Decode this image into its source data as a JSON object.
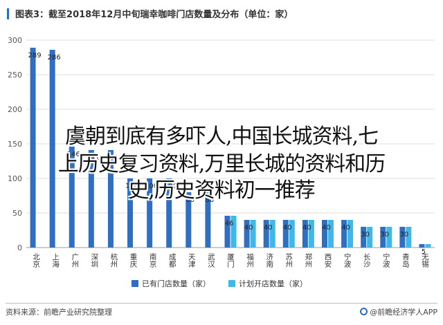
{
  "chart_data": {
    "type": "bar",
    "title": "图表3：截至2018年12月中旬瑞幸咖啡门店数量及分布（单位：家）",
    "categories": [
      "北京",
      "上海",
      "广州",
      "深圳",
      "杭州",
      "重庆",
      "南京",
      "成都",
      "天津",
      "武汉",
      "厦门",
      "福州",
      "济南",
      "苏州",
      "郑州",
      "西安",
      "宁波",
      "长沙",
      "宁波",
      "青岛",
      "无锡"
    ],
    "ylim": [
      0,
      300
    ],
    "yticks": [
      0,
      50,
      100,
      150,
      200,
      250,
      300
    ],
    "series": [
      {
        "name": "已有门店数量（家）",
        "color": "#2f6fc2",
        "values": [
          289,
          286,
          146,
          141,
          141,
          100,
          100,
          100,
          80,
          80,
          46,
          40,
          40,
          40,
          40,
          40,
          40,
          30,
          30,
          30,
          5
        ]
      },
      {
        "name": "计划开店数量（家）",
        "color": "#3fb8e8",
        "values": [
          0,
          0,
          0,
          0,
          0,
          0,
          0,
          0,
          0,
          0,
          46,
          40,
          40,
          40,
          40,
          40,
          40,
          30,
          30,
          30,
          5
        ]
      }
    ],
    "data_labels": [
      [
        "289",
        "286",
        "146",
        "141",
        "141",
        "100",
        "100",
        "100",
        "80",
        "80",
        "46",
        "40",
        "40",
        "40",
        "40",
        "40",
        "40",
        "30",
        "30",
        "30",
        "5"
      ],
      [
        "",
        "",
        "",
        "",
        "",
        "",
        "",
        "",
        "",
        "",
        "",
        "",
        "",
        "",
        "",
        "",
        "",
        "",
        "",
        "",
        ""
      ]
    ],
    "grid": true,
    "legend": "bottom-center"
  },
  "overlay": {
    "line1": "虞朝到底有多吓人,中国长城资料,七",
    "line2": "上历史复习资料,万里长城的资料和历",
    "line3": "史,历史资料初一推荐"
  },
  "footer": {
    "source": "资料来源：前瞻产业研究院整理",
    "credit": "@前瞻经济学人APP"
  },
  "colors": {
    "accent": "#2a6fbd"
  },
  "icons": {
    "credit": "logo-circle-icon"
  }
}
